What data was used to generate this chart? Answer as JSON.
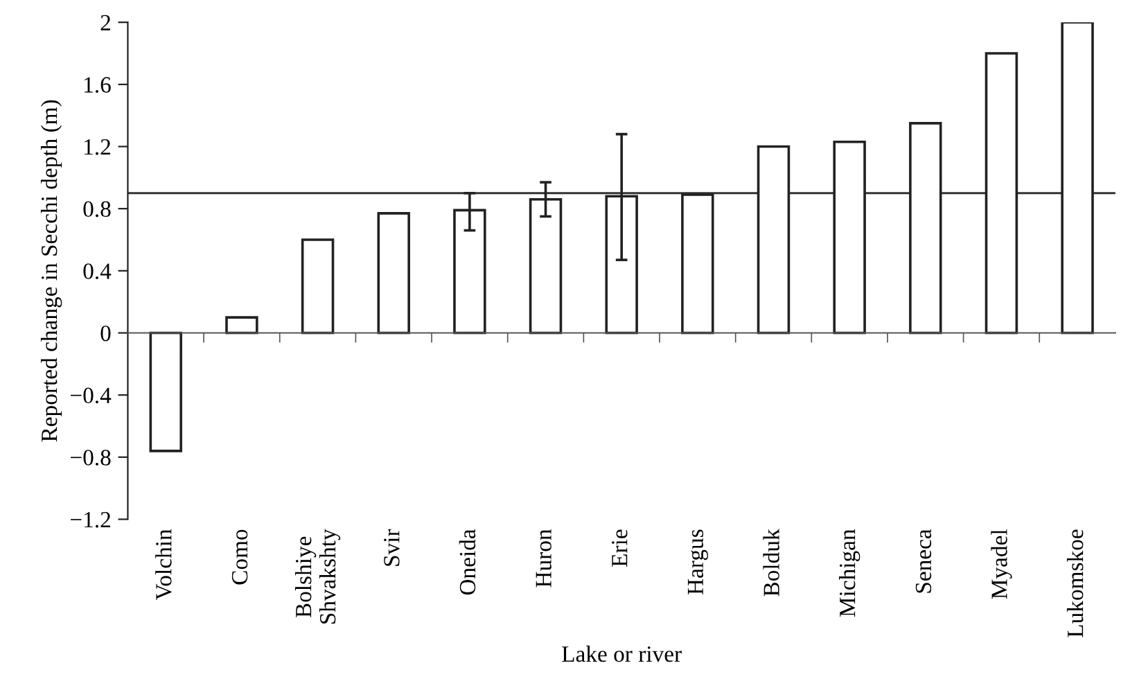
{
  "chart_data": {
    "type": "bar",
    "xlabel": "Lake or river",
    "ylabel": "Reported change in Secchi depth (m)",
    "categories": [
      "Volchin",
      "Como",
      "Bolshiye\nShvakshty",
      "Svir",
      "Oneida",
      "Huron",
      "Erie",
      "Hargus",
      "Bolduk",
      "Michigan",
      "Seneca",
      "Myadel",
      "Lukomskoe"
    ],
    "values": [
      -0.76,
      0.1,
      0.6,
      0.77,
      0.79,
      0.86,
      0.88,
      0.89,
      1.2,
      1.23,
      1.35,
      1.8,
      2.0
    ],
    "errors": [
      null,
      null,
      null,
      null,
      [
        0.66,
        0.9
      ],
      [
        0.75,
        0.97
      ],
      [
        0.47,
        1.28
      ],
      null,
      null,
      null,
      null,
      null,
      null
    ],
    "color": "#ffffff",
    "ylim": [
      -1.2,
      2
    ],
    "yticks": [
      {
        "value": -1.2,
        "label": "−1.2"
      },
      {
        "value": -0.8,
        "label": "−0.8"
      },
      {
        "value": -0.4,
        "label": "−0.4"
      },
      0,
      0.4,
      0.8,
      1.2,
      1.6,
      2
    ],
    "ref_lines": [
      {
        "axis": "y",
        "value": 0.9,
        "label": null,
        "color": "#333333"
      }
    ],
    "legend": false
  }
}
